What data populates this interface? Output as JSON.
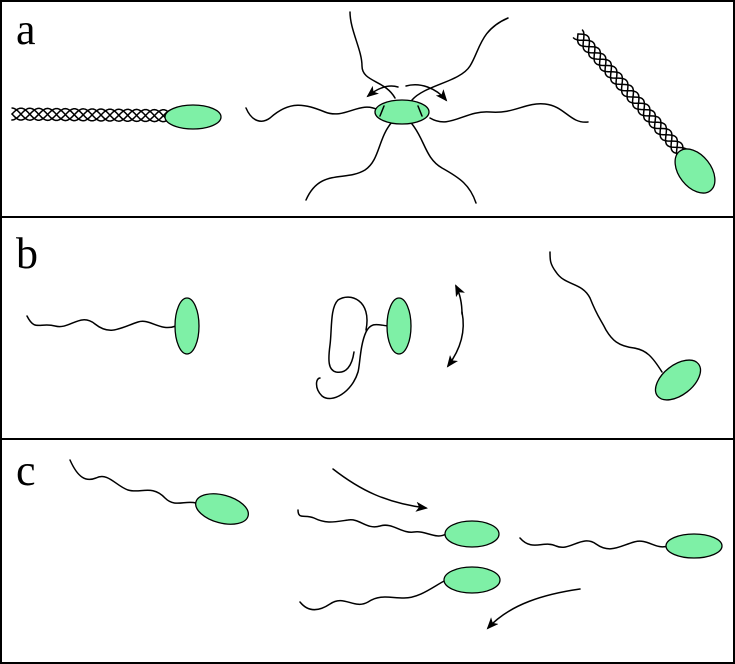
{
  "figure": {
    "panels": [
      {
        "label": "a"
      },
      {
        "label": "b"
      },
      {
        "label": "c"
      }
    ],
    "colors": {
      "cell_fill": "#7ef0a6",
      "stroke": "#000000",
      "background": "#ffffff"
    }
  }
}
